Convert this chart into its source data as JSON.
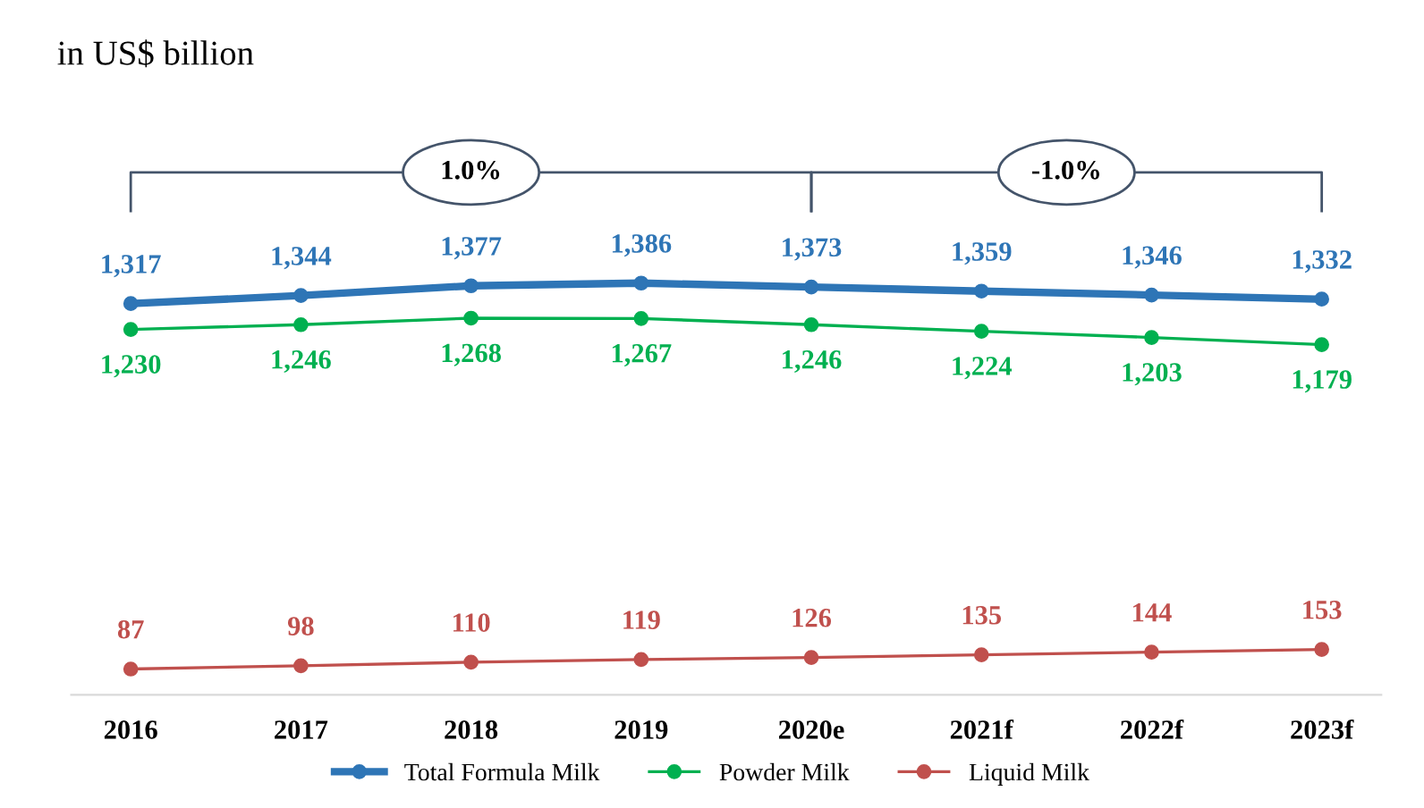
{
  "chart_data": {
    "type": "line",
    "title": "in US$ billion",
    "categories": [
      "2016",
      "2017",
      "2018",
      "2019",
      "2020e",
      "2021f",
      "2022f",
      "2023f"
    ],
    "series": [
      {
        "name": "Total Formula Milk",
        "color": "#2e75b6",
        "values": [
          1317,
          1344,
          1377,
          1386,
          1373,
          1359,
          1346,
          1332
        ],
        "value_labels": [
          "1,317",
          "1,344",
          "1,377",
          "1,386",
          "1,373",
          "1,359",
          "1,346",
          "1,332"
        ]
      },
      {
        "name": "Powder Milk",
        "color": "#00b050",
        "values": [
          1230,
          1246,
          1268,
          1267,
          1246,
          1224,
          1203,
          1179
        ],
        "value_labels": [
          "1,230",
          "1,246",
          "1,268",
          "1,267",
          "1,246",
          "1,224",
          "1,203",
          "1,179"
        ]
      },
      {
        "name": "Liquid Milk",
        "color": "#c0504d",
        "values": [
          87,
          98,
          110,
          119,
          126,
          135,
          144,
          153
        ],
        "value_labels": [
          "87",
          "98",
          "110",
          "119",
          "126",
          "135",
          "144",
          "153"
        ]
      }
    ],
    "tick_labels": "x",
    "marker": "circle",
    "grid": false,
    "legend": "bottom",
    "annotations": [
      "1.0%",
      "-1.0%"
    ]
  }
}
